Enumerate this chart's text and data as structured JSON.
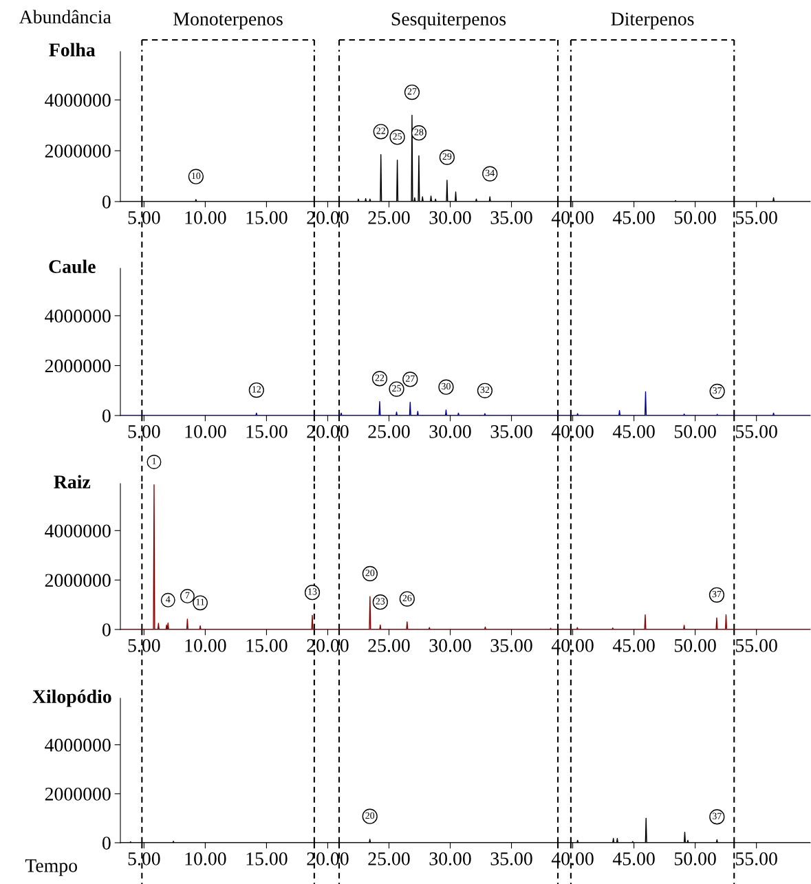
{
  "chart_data": [
    {
      "type": "line",
      "title": "Folha",
      "ylabel": "Abundância",
      "xlim": [
        3.07,
        59.4
      ],
      "ylim": [
        0,
        5900000
      ],
      "xticks": [
        {
          "value": 5,
          "label": "5.00"
        },
        {
          "value": 10,
          "label": "10.00"
        },
        {
          "value": 15,
          "label": "15.00"
        },
        {
          "value": 20,
          "label": "20.00"
        },
        {
          "value": 25,
          "label": "25.00"
        },
        {
          "value": 30,
          "label": "30.00"
        },
        {
          "value": 35,
          "label": "35.00"
        },
        {
          "value": 40,
          "label": "40.00"
        },
        {
          "value": 45,
          "label": "45.00"
        },
        {
          "value": 50,
          "label": "50.00"
        },
        {
          "value": 55,
          "label": "55.00"
        }
      ],
      "yticks": [
        0,
        2000000,
        4000000
      ],
      "ref_lines": [
        {
          "axis": "x",
          "value": 4.83,
          "color": "#000000",
          "line_style": "dashed"
        },
        {
          "axis": "x",
          "value": 18.9,
          "color": "#000000",
          "line_style": "dashed"
        },
        {
          "axis": "x",
          "value": 20.93,
          "color": "#000000",
          "line_style": "dashed"
        },
        {
          "axis": "x",
          "value": 38.79,
          "color": "#000000",
          "line_style": "dashed"
        },
        {
          "axis": "x",
          "value": 39.85,
          "color": "#000000",
          "line_style": "dashed"
        },
        {
          "axis": "x",
          "value": 53.18,
          "color": "#000000",
          "line_style": "dashed"
        }
      ],
      "series": [
        {
          "color": "#000000",
          "x": [
            3.07,
            9.19,
            9.24,
            9.29,
            22.45,
            22.5,
            22.55,
            23.05,
            23.1,
            23.15,
            23.4,
            23.45,
            23.5,
            24.29,
            24.34,
            24.39,
            25.63,
            25.68,
            25.73,
            26.83,
            26.88,
            26.93,
            27.05,
            27.1,
            27.15,
            27.39,
            27.44,
            27.49,
            27.69,
            27.74,
            27.79,
            28.38,
            28.43,
            28.48,
            28.75,
            28.8,
            28.85,
            29.69,
            29.74,
            29.79,
            30.4,
            30.45,
            30.5,
            32.08,
            32.13,
            32.18,
            33.19,
            33.24,
            33.29,
            48.35,
            48.4,
            48.45,
            56.35,
            56.4,
            56.45,
            59.4
          ],
          "values": [
            0,
            0,
            80000,
            0,
            0,
            100000,
            0,
            0,
            120000,
            0,
            0,
            100000,
            0,
            0,
            1850000,
            0,
            0,
            1630000,
            0,
            0,
            3400000,
            0,
            0,
            150000,
            0,
            0,
            1800000,
            0,
            0,
            190000,
            0,
            0,
            220000,
            0,
            0,
            100000,
            0,
            0,
            840000,
            0,
            0,
            380000,
            0,
            0,
            100000,
            0,
            0,
            190000,
            0,
            0,
            40000,
            0,
            0,
            150000,
            0,
            0
          ]
        }
      ],
      "annotations": [
        "Monoterpenos",
        "Sesquiterpenos",
        "Diterpenos",
        {
          "text": "10",
          "x": 9.24,
          "y": 80000
        },
        {
          "text": "22",
          "x": 24.34,
          "y": 1850000
        },
        {
          "text": "25",
          "x": 25.68,
          "y": 1630000
        },
        {
          "text": "27",
          "x": 26.88,
          "y": 3400000
        },
        {
          "text": "28",
          "x": 27.44,
          "y": 1800000
        },
        {
          "text": "29",
          "x": 29.74,
          "y": 840000
        },
        {
          "text": "34",
          "x": 33.24,
          "y": 190000
        }
      ]
    },
    {
      "type": "line",
      "title": "Caule",
      "xlim": [
        3.07,
        59.4
      ],
      "ylim": [
        0,
        5900000
      ],
      "xticks": [
        {
          "value": 5,
          "label": "5.00"
        },
        {
          "value": 10,
          "label": "10.00"
        },
        {
          "value": 15,
          "label": "15.00"
        },
        {
          "value": 20,
          "label": "20.00"
        },
        {
          "value": 25,
          "label": "25.00"
        },
        {
          "value": 30,
          "label": "30.00"
        },
        {
          "value": 35,
          "label": "35.00"
        },
        {
          "value": 40,
          "label": "40.00"
        },
        {
          "value": 45,
          "label": "45.00"
        },
        {
          "value": 50,
          "label": "50.00"
        },
        {
          "value": 55,
          "label": "55.00"
        }
      ],
      "yticks": [
        0,
        2000000,
        4000000
      ],
      "ref_lines": [
        {
          "axis": "x",
          "value": 4.83,
          "color": "#000000",
          "line_style": "dashed"
        },
        {
          "axis": "x",
          "value": 18.9,
          "color": "#000000",
          "line_style": "dashed"
        },
        {
          "axis": "x",
          "value": 20.93,
          "color": "#000000",
          "line_style": "dashed"
        },
        {
          "axis": "x",
          "value": 38.79,
          "color": "#000000",
          "line_style": "dashed"
        },
        {
          "axis": "x",
          "value": 39.85,
          "color": "#000000",
          "line_style": "dashed"
        },
        {
          "axis": "x",
          "value": 53.18,
          "color": "#000000",
          "line_style": "dashed"
        }
      ],
      "series": [
        {
          "color": "#00008b",
          "x": [
            3.07,
            14.13,
            14.18,
            14.23,
            21.05,
            21.1,
            21.15,
            24.19,
            24.24,
            24.29,
            25.57,
            25.62,
            25.67,
            26.68,
            26.73,
            26.78,
            27.3,
            27.35,
            27.4,
            29.61,
            29.66,
            29.71,
            30.62,
            30.67,
            30.72,
            32.78,
            32.83,
            32.88,
            40.35,
            40.4,
            40.45,
            43.77,
            43.82,
            43.87,
            45.9,
            45.95,
            46.0,
            49.05,
            49.1,
            49.15,
            51.75,
            51.8,
            51.85,
            56.35,
            56.4,
            56.45,
            59.4
          ],
          "values": [
            0,
            0,
            100000,
            0,
            0,
            100000,
            0,
            0,
            560000,
            0,
            0,
            140000,
            0,
            0,
            530000,
            0,
            0,
            170000,
            0,
            0,
            220000,
            0,
            0,
            100000,
            0,
            0,
            80000,
            0,
            0,
            80000,
            0,
            0,
            200000,
            0,
            0,
            950000,
            0,
            0,
            60000,
            0,
            0,
            50000,
            0,
            0,
            100000,
            0,
            0
          ]
        }
      ],
      "annotations": [
        {
          "text": "12",
          "x": 14.18,
          "y": 100000
        },
        {
          "text": "22",
          "x": 24.24,
          "y": 560000
        },
        {
          "text": "25",
          "x": 25.62,
          "y": 140000
        },
        {
          "text": "27",
          "x": 26.73,
          "y": 530000
        },
        {
          "text": "30",
          "x": 29.66,
          "y": 220000
        },
        {
          "text": "32",
          "x": 32.83,
          "y": 80000
        },
        {
          "text": "37",
          "x": 51.8,
          "y": 50000
        }
      ]
    },
    {
      "type": "line",
      "title": "Raiz",
      "xlim": [
        3.07,
        59.4
      ],
      "ylim": [
        0,
        5900000
      ],
      "xticks": [
        {
          "value": 5,
          "label": "5.00"
        },
        {
          "value": 10,
          "label": "10.00"
        },
        {
          "value": 15,
          "label": "15.00"
        },
        {
          "value": 20,
          "label": "20.00"
        },
        {
          "value": 25,
          "label": "25.00"
        },
        {
          "value": 30,
          "label": "30.00"
        },
        {
          "value": 35,
          "label": "35.00"
        },
        {
          "value": 40,
          "label": "40.00"
        },
        {
          "value": 45,
          "label": "45.00"
        },
        {
          "value": 50,
          "label": "50.00"
        },
        {
          "value": 55,
          "label": "55.00"
        }
      ],
      "yticks": [
        0,
        2000000,
        4000000
      ],
      "ref_lines": [
        {
          "axis": "x",
          "value": 4.83,
          "color": "#000000",
          "line_style": "dashed"
        },
        {
          "axis": "x",
          "value": 18.9,
          "color": "#000000",
          "line_style": "dashed"
        },
        {
          "axis": "x",
          "value": 20.93,
          "color": "#000000",
          "line_style": "dashed"
        },
        {
          "axis": "x",
          "value": 38.79,
          "color": "#000000",
          "line_style": "dashed"
        },
        {
          "axis": "x",
          "value": 39.85,
          "color": "#000000",
          "line_style": "dashed"
        },
        {
          "axis": "x",
          "value": 53.18,
          "color": "#000000",
          "line_style": "dashed"
        }
      ],
      "series": [
        {
          "color": "#8b0000",
          "x": [
            3.07,
            5.77,
            5.82,
            5.87,
            6.13,
            6.18,
            6.23,
            6.79,
            6.84,
            6.89,
            6.91,
            6.96,
            7.01,
            8.49,
            8.54,
            8.59,
            9.54,
            9.59,
            9.64,
            18.69,
            18.74,
            18.79,
            23.4,
            23.45,
            23.5,
            24.24,
            24.29,
            24.34,
            26.43,
            26.48,
            26.53,
            28.25,
            28.3,
            28.35,
            32.81,
            32.86,
            32.91,
            38.15,
            38.2,
            38.25,
            40.33,
            40.38,
            40.43,
            43.22,
            43.27,
            43.32,
            45.87,
            45.92,
            45.97,
            49.05,
            49.1,
            49.15,
            51.71,
            51.76,
            51.81,
            52.47,
            52.52,
            52.57,
            59.4
          ],
          "values": [
            0,
            0,
            5850000,
            0,
            0,
            250000,
            0,
            0,
            180000,
            0,
            0,
            260000,
            0,
            0,
            420000,
            0,
            0,
            150000,
            0,
            0,
            570000,
            0,
            0,
            1330000,
            0,
            0,
            180000,
            0,
            0,
            310000,
            0,
            0,
            80000,
            0,
            0,
            100000,
            0,
            0,
            50000,
            0,
            0,
            80000,
            0,
            0,
            60000,
            0,
            0,
            590000,
            0,
            0,
            170000,
            0,
            0,
            470000,
            0,
            0,
            590000,
            0,
            0
          ]
        }
      ],
      "annotations": [
        {
          "text": "1",
          "x": 5.82,
          "y": 5850000
        },
        {
          "text": "4",
          "x": 6.96,
          "y": 260000
        },
        {
          "text": "7",
          "x": 8.54,
          "y": 420000
        },
        {
          "text": "11",
          "x": 9.59,
          "y": 150000
        },
        {
          "text": "13",
          "x": 18.74,
          "y": 570000
        },
        {
          "text": "20",
          "x": 23.45,
          "y": 1330000
        },
        {
          "text": "23",
          "x": 24.29,
          "y": 180000
        },
        {
          "text": "26",
          "x": 26.48,
          "y": 310000
        },
        {
          "text": "37",
          "x": 51.76,
          "y": 470000
        }
      ]
    },
    {
      "type": "line",
      "title": "Xilopódio",
      "xlabel": "Tempo",
      "xlim": [
        3.07,
        59.4
      ],
      "ylim": [
        0,
        5900000
      ],
      "xticks": [
        {
          "value": 5,
          "label": "5.00"
        },
        {
          "value": 10,
          "label": "10.00"
        },
        {
          "value": 15,
          "label": "15.00"
        },
        {
          "value": 20,
          "label": "20.00"
        },
        {
          "value": 25,
          "label": "25.00"
        },
        {
          "value": 30,
          "label": "30.00"
        },
        {
          "value": 35,
          "label": "35.00"
        },
        {
          "value": 40,
          "label": "40.00"
        },
        {
          "value": 45,
          "label": "45.00"
        },
        {
          "value": 50,
          "label": "50.00"
        },
        {
          "value": 55,
          "label": "55.00"
        }
      ],
      "yticks": [
        0,
        2000000,
        4000000
      ],
      "ref_lines": [
        {
          "axis": "x",
          "value": 4.83,
          "color": "#000000",
          "line_style": "dashed"
        },
        {
          "axis": "x",
          "value": 18.9,
          "color": "#000000",
          "line_style": "dashed"
        },
        {
          "axis": "x",
          "value": 20.93,
          "color": "#000000",
          "line_style": "dashed"
        },
        {
          "axis": "x",
          "value": 38.79,
          "color": "#000000",
          "line_style": "dashed"
        },
        {
          "axis": "x",
          "value": 39.85,
          "color": "#000000",
          "line_style": "dashed"
        },
        {
          "axis": "x",
          "value": 53.18,
          "color": "#000000",
          "line_style": "dashed"
        }
      ],
      "series": [
        {
          "color": "#000000",
          "x": [
            3.07,
            3.85,
            3.9,
            3.95,
            7.35,
            7.4,
            7.45,
            23.39,
            23.44,
            23.49,
            40.35,
            40.4,
            40.45,
            43.27,
            43.32,
            43.37,
            43.59,
            43.64,
            43.69,
            44.85,
            44.9,
            44.95,
            45.94,
            45.99,
            46.04,
            49.1,
            49.15,
            49.2,
            49.35,
            49.4,
            49.45,
            51.73,
            51.78,
            51.83,
            59.4
          ],
          "values": [
            0,
            0,
            40000,
            0,
            0,
            60000,
            0,
            0,
            140000,
            0,
            0,
            100000,
            0,
            0,
            180000,
            0,
            0,
            180000,
            0,
            0,
            50000,
            0,
            0,
            1000000,
            0,
            0,
            430000,
            0,
            0,
            100000,
            0,
            0,
            120000,
            0,
            0
          ]
        }
      ],
      "annotations": [
        {
          "text": "20",
          "x": 23.44,
          "y": 140000
        },
        {
          "text": "37",
          "x": 51.78,
          "y": 120000
        }
      ]
    }
  ]
}
